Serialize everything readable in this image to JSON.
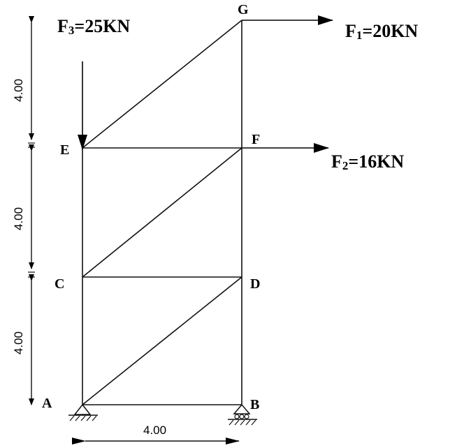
{
  "nodes": {
    "A": "A",
    "B": "B",
    "C": "C",
    "D": "D",
    "E": "E",
    "F": "F",
    "G": "G"
  },
  "forces": {
    "f1": {
      "main": "F",
      "sub": "1",
      "rest": "=20KN"
    },
    "f2": {
      "main": "F",
      "sub": "2",
      "rest": "=16KN"
    },
    "f3": {
      "main": "F",
      "sub": "3",
      "rest": "=25KN"
    }
  },
  "dimensions": {
    "vertical_1": "4.00",
    "vertical_2": "4.00",
    "vertical_3": "4.00",
    "horizontal": "4.00"
  }
}
